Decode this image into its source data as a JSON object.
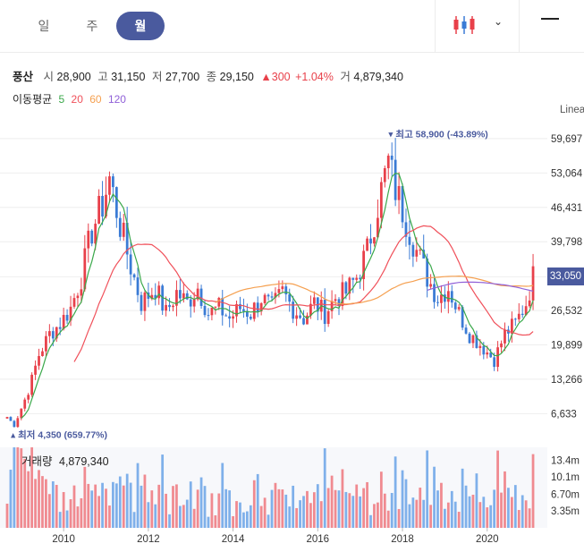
{
  "tabs": [
    {
      "label": "일",
      "active": false
    },
    {
      "label": "주",
      "active": false
    },
    {
      "label": "월",
      "active": true
    }
  ],
  "toolbar": {
    "chart_type_icon": "candlestick-icon",
    "dropdown_icon": "chevron-down-icon",
    "minimize_icon": "minimize-icon"
  },
  "quote": {
    "name": "풍산",
    "open_label": "시",
    "open": "28,900",
    "high_label": "고",
    "high": "31,150",
    "low_label": "저",
    "low": "27,700",
    "close_label": "종",
    "close": "29,150",
    "change": "▲300",
    "change_pct": "+1.04%",
    "volume_label": "거",
    "volume": "4,879,340"
  },
  "ma_legend": {
    "label": "이동평균",
    "periods": [
      {
        "label": "5",
        "color": "#3aa84a"
      },
      {
        "label": "20",
        "color": "#f0505a"
      },
      {
        "label": "60",
        "color": "#f5a050"
      },
      {
        "label": "120",
        "color": "#9060d8"
      }
    ]
  },
  "colors": {
    "up": "#e8404a",
    "down": "#3a7bd5",
    "vol_up": "#f08a90",
    "vol_down": "#7fb0ea",
    "accent": "#4a5a9e"
  },
  "scale_label": "Linea",
  "last_price_badge": "33,050",
  "chart_data": {
    "type": "candlestick",
    "y_ticks": [
      "59,697",
      "53,064",
      "46,431",
      "39,798",
      "33,050",
      "26,532",
      "19,899",
      "13,266",
      "6,633"
    ],
    "ylim": [
      1000,
      64000
    ],
    "x_ticks": [
      "2010",
      "2012",
      "2014",
      "2016",
      "2018",
      "2020"
    ],
    "x_range": [
      "2008-09",
      "2021-03"
    ],
    "high_annotation": {
      "label": "최고 58,900 (-43.89%)",
      "date": "2017-09",
      "value": 58900
    },
    "low_annotation": {
      "label": "최저 4,350 (659.77%)",
      "date": "2008-10",
      "value": 4350
    },
    "price_path": [
      [
        "2008-09",
        6000
      ],
      [
        "2008-11",
        4350
      ],
      [
        "2009-03",
        11000
      ],
      [
        "2009-06",
        18000
      ],
      [
        "2009-09",
        22000
      ],
      [
        "2009-12",
        24000
      ],
      [
        "2010-03",
        27000
      ],
      [
        "2010-06",
        33000
      ],
      [
        "2010-09",
        42000
      ],
      [
        "2010-12",
        47000
      ],
      [
        "2011-02",
        52000
      ],
      [
        "2011-05",
        43000
      ],
      [
        "2011-08",
        35000
      ],
      [
        "2011-11",
        28000
      ],
      [
        "2012-03",
        31000
      ],
      [
        "2012-06",
        26000
      ],
      [
        "2012-09",
        30000
      ],
      [
        "2012-12",
        28000
      ],
      [
        "2013-03",
        31000
      ],
      [
        "2013-06",
        26000
      ],
      [
        "2013-09",
        27000
      ],
      [
        "2013-12",
        25000
      ],
      [
        "2014-03",
        27000
      ],
      [
        "2014-06",
        26000
      ],
      [
        "2014-09",
        29000
      ],
      [
        "2014-12",
        27000
      ],
      [
        "2015-03",
        30000
      ],
      [
        "2015-06",
        27000
      ],
      [
        "2015-09",
        25000
      ],
      [
        "2015-12",
        28000
      ],
      [
        "2016-03",
        26000
      ],
      [
        "2016-06",
        29000
      ],
      [
        "2016-09",
        30000
      ],
      [
        "2016-12",
        33000
      ],
      [
        "2017-03",
        38000
      ],
      [
        "2017-06",
        47000
      ],
      [
        "2017-09",
        55000
      ],
      [
        "2017-11",
        50000
      ],
      [
        "2018-02",
        44000
      ],
      [
        "2018-05",
        38000
      ],
      [
        "2018-08",
        33000
      ],
      [
        "2018-11",
        29000
      ],
      [
        "2019-02",
        31000
      ],
      [
        "2019-05",
        26000
      ],
      [
        "2019-08",
        22000
      ],
      [
        "2019-11",
        20000
      ],
      [
        "2020-03",
        17000
      ],
      [
        "2020-06",
        22000
      ],
      [
        "2020-09",
        24000
      ],
      [
        "2020-12",
        28000
      ],
      [
        "2021-02",
        33050
      ]
    ],
    "volume": {
      "title": "거래량",
      "last": "4,879,340",
      "y_ticks": [
        "13.4m",
        "10.1m",
        "6.70m",
        "3.35m"
      ],
      "ylim": [
        0,
        16000000
      ]
    }
  }
}
